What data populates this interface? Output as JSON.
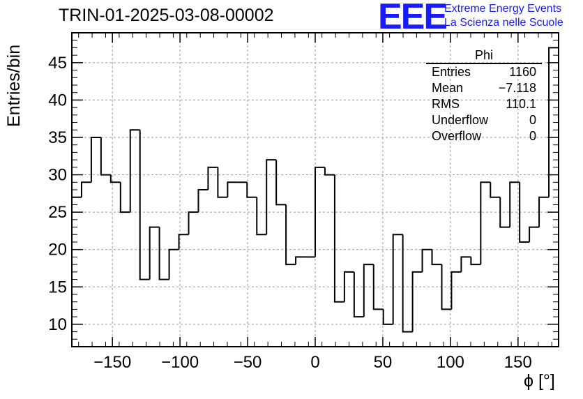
{
  "title": "TRIN-01-2025-03-08-00002",
  "logo": {
    "mark": "EEE",
    "line1": "Extreme Energy Events",
    "line2": "La Scienza nelle Scuole",
    "color": "#1a1aff"
  },
  "stats_box": {
    "name": "Phi",
    "rows": [
      {
        "label": "Entries",
        "value": "1160"
      },
      {
        "label": "Mean",
        "value": "−7.118"
      },
      {
        "label": "RMS",
        "value": "110.1"
      },
      {
        "label": "Underflow",
        "value": "0"
      },
      {
        "label": "Overflow",
        "value": "0"
      }
    ]
  },
  "chart_data": {
    "type": "bar",
    "style": "histogram-step",
    "xlabel": "ϕ [°]",
    "ylabel": "Entries/bin",
    "xlim": [
      -180,
      180
    ],
    "ylim": [
      7,
      49
    ],
    "bin_width": 7.2,
    "grid": true,
    "x_ticks": [
      -150,
      -100,
      -50,
      0,
      50,
      100,
      150
    ],
    "x_tick_labels": [
      "−150",
      "−100",
      "−50",
      "0",
      "50",
      "100",
      "150"
    ],
    "y_ticks": [
      10,
      15,
      20,
      25,
      30,
      35,
      40,
      45
    ],
    "y_tick_labels": [
      "10",
      "15",
      "20",
      "25",
      "30",
      "35",
      "40",
      "45"
    ],
    "values": [
      27,
      29,
      35,
      30,
      29,
      25,
      36,
      16,
      23,
      16,
      20,
      22,
      25,
      28,
      31,
      27,
      29,
      29,
      27,
      22,
      32,
      26,
      18,
      19,
      19,
      31,
      30,
      13,
      17,
      11,
      18,
      12,
      10,
      22,
      9,
      17,
      20,
      18,
      12,
      17,
      19,
      18,
      29,
      27,
      23,
      29,
      21,
      23,
      27,
      47
    ]
  }
}
